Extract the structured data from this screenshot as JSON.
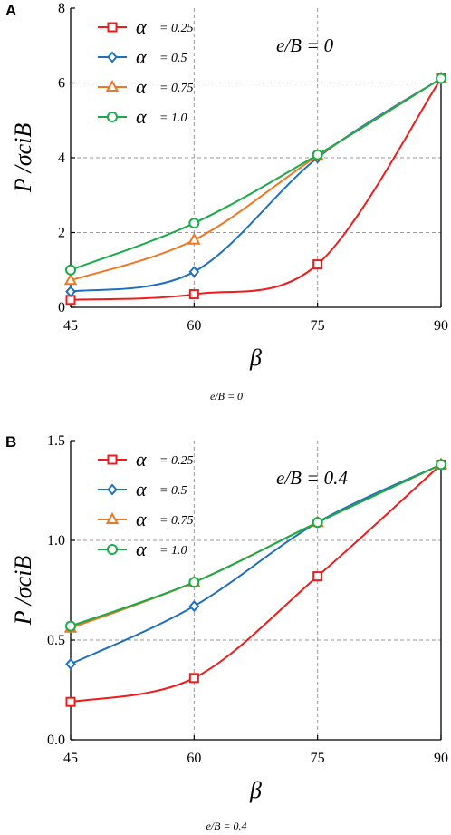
{
  "chart_data": [
    {
      "type": "line",
      "panel_label": "A",
      "annotation": "e/B = 0",
      "caption": "e/B = 0",
      "xlabel": "β",
      "ylabel": "P /σciB",
      "x": [
        45,
        60,
        75,
        90
      ],
      "xticks": [
        "45",
        "60",
        "75",
        "90"
      ],
      "xlim": [
        45,
        90
      ],
      "ylim": [
        0,
        8
      ],
      "yticks": [
        "0",
        "2",
        "4",
        "6",
        "8"
      ],
      "grid": "dashed at x=60, 75 and y=2, 4, 6",
      "legend_position": "top-left",
      "series": [
        {
          "name": "α = 0.25",
          "alpha": "α",
          "label": "= 0.25",
          "color": "#ee1c1c",
          "marker": "square",
          "values": [
            0.2,
            0.35,
            1.15,
            6.12
          ]
        },
        {
          "name": "α = 0.5",
          "alpha": "α",
          "label": "= 0.5",
          "color": "#1f6fc0",
          "marker": "diamond",
          "values": [
            0.42,
            0.95,
            4.0,
            6.12
          ]
        },
        {
          "name": "α = 0.75",
          "alpha": "α",
          "label": "= 0.75",
          "color": "#ee7722",
          "marker": "triangle",
          "values": [
            0.72,
            1.8,
            4.05,
            6.12
          ]
        },
        {
          "name": "α = 1.0",
          "alpha": "α",
          "label": "= 1.0",
          "color": "#1aaa4a",
          "marker": "circle",
          "values": [
            1.0,
            2.25,
            4.08,
            6.12
          ]
        }
      ]
    },
    {
      "type": "line",
      "panel_label": "B",
      "annotation": "e/B = 0.4",
      "caption": "e/B = 0.4",
      "xlabel": "β",
      "ylabel": "P /σciB",
      "x": [
        45,
        60,
        75,
        90
      ],
      "xticks": [
        "45",
        "60",
        "75",
        "90"
      ],
      "xlim": [
        45,
        90
      ],
      "ylim": [
        0,
        1.5
      ],
      "yticks": [
        "0.0",
        "0.5",
        "1.0",
        "1.5"
      ],
      "grid": "dashed at x=60, 75 and y=0.5, 1.0",
      "legend_position": "top-left",
      "series": [
        {
          "name": "α = 0.25",
          "alpha": "α",
          "label": "= 0.25",
          "color": "#ee1c1c",
          "marker": "square",
          "values": [
            0.19,
            0.31,
            0.82,
            1.38
          ]
        },
        {
          "name": "α = 0.5",
          "alpha": "α",
          "label": "= 0.5",
          "color": "#1f6fc0",
          "marker": "diamond",
          "values": [
            0.38,
            0.67,
            1.09,
            1.38
          ]
        },
        {
          "name": "α = 0.75",
          "alpha": "α",
          "label": "= 0.75",
          "color": "#ee7722",
          "marker": "triangle",
          "values": [
            0.56,
            0.79,
            1.09,
            1.38
          ]
        },
        {
          "name": "α = 1.0",
          "alpha": "α",
          "label": "= 1.0",
          "color": "#1aaa4a",
          "marker": "circle",
          "values": [
            0.57,
            0.79,
            1.09,
            1.38
          ]
        }
      ]
    }
  ]
}
